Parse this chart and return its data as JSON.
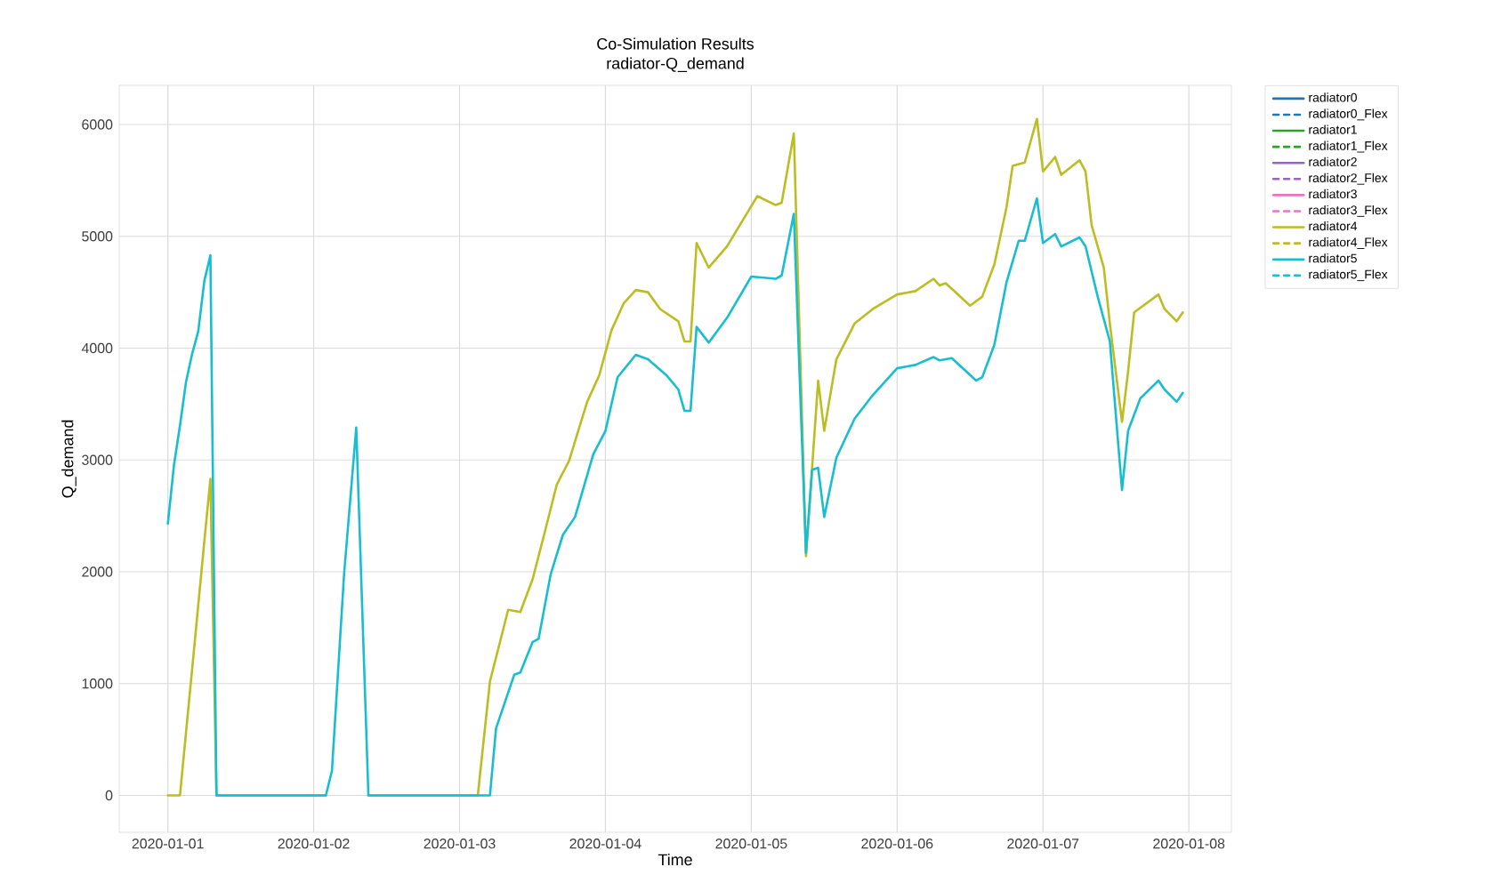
{
  "chart_data": {
    "type": "line",
    "title": "Co-Simulation Results",
    "subtitle": "radiator-Q_demand",
    "xlabel": "Time",
    "ylabel": "Q_demand",
    "xlim": [
      "2019-12-31T16:00",
      "2020-01-08T07:00"
    ],
    "xticks": [
      "2020-01-01",
      "2020-01-02",
      "2020-01-03",
      "2020-01-04",
      "2020-01-05",
      "2020-01-06",
      "2020-01-07",
      "2020-01-08"
    ],
    "ylim": [
      -330,
      6350
    ],
    "yticks": [
      0,
      1000,
      2000,
      3000,
      4000,
      5000,
      6000
    ],
    "grid": true,
    "legend": "right",
    "series": [
      {
        "name": "radiator0",
        "color": "#1f77b4"
      },
      {
        "name": "radiator0_Flex",
        "color": "#1f77b4",
        "line_style": "dashed"
      },
      {
        "name": "radiator1",
        "color": "#2ca02c"
      },
      {
        "name": "radiator1_Flex",
        "color": "#2ca02c",
        "line_style": "dashed"
      },
      {
        "name": "radiator2",
        "color": "#9467bd"
      },
      {
        "name": "radiator2_Flex",
        "color": "#9467bd",
        "line_style": "dashed"
      },
      {
        "name": "radiator3",
        "color": "#e377c2"
      },
      {
        "name": "radiator3_Flex",
        "color": "#e377c2",
        "line_style": "dashed"
      },
      {
        "name": "radiator4",
        "color": "#bcbd22",
        "x": [
          "2020-01-01T00:00",
          "2020-01-01T02:00",
          "2020-01-01T03:00",
          "2020-01-01T04:00",
          "2020-01-01T05:00",
          "2020-01-01T06:00",
          "2020-01-01T07:00",
          "2020-01-01T08:00",
          "2020-01-02T02:00",
          "2020-01-02T03:00",
          "2020-01-02T05:00",
          "2020-01-02T07:00",
          "2020-01-02T09:00",
          "2020-01-03T03:00",
          "2020-01-03T05:00",
          "2020-01-03T08:00",
          "2020-01-03T10:00",
          "2020-01-03T12:00",
          "2020-01-03T14:00",
          "2020-01-03T16:00",
          "2020-01-03T18:00",
          "2020-01-03T21:00",
          "2020-01-03T23:00",
          "2020-01-04T01:00",
          "2020-01-04T03:00",
          "2020-01-04T05:00",
          "2020-01-04T07:00",
          "2020-01-04T09:00",
          "2020-01-04T12:00",
          "2020-01-04T13:00",
          "2020-01-04T14:00",
          "2020-01-04T15:00",
          "2020-01-04T17:00",
          "2020-01-04T20:00",
          "2020-01-04T23:00",
          "2020-01-05T01:00",
          "2020-01-05T04:00",
          "2020-01-05T05:00",
          "2020-01-05T07:00",
          "2020-01-05T09:00",
          "2020-01-05T11:00",
          "2020-01-05T12:00",
          "2020-01-05T14:00",
          "2020-01-05T17:00",
          "2020-01-05T20:00",
          "2020-01-06T00:00",
          "2020-01-06T03:00",
          "2020-01-06T06:00",
          "2020-01-06T07:00",
          "2020-01-06T08:00",
          "2020-01-06T12:00",
          "2020-01-06T14:00",
          "2020-01-06T16:00",
          "2020-01-06T18:00",
          "2020-01-06T19:00",
          "2020-01-06T21:00",
          "2020-01-06T23:00",
          "2020-01-07T00:00",
          "2020-01-07T02:00",
          "2020-01-07T03:00",
          "2020-01-07T06:00",
          "2020-01-07T07:00",
          "2020-01-07T08:00",
          "2020-01-07T10:00",
          "2020-01-07T11:00",
          "2020-01-07T13:00",
          "2020-01-07T14:00",
          "2020-01-07T15:00",
          "2020-01-07T19:00",
          "2020-01-07T20:00",
          "2020-01-07T22:00",
          "2020-01-07T23:00"
        ],
        "values": [
          0,
          0,
          570,
          1130,
          1700,
          2270,
          2830,
          0,
          0,
          null,
          null,
          null,
          0,
          0,
          1020,
          1660,
          1640,
          1930,
          2350,
          2780,
          2990,
          3520,
          3760,
          4160,
          4400,
          4520,
          4500,
          4350,
          4240,
          4060,
          4060,
          4940,
          4720,
          4910,
          5180,
          5360,
          5280,
          5300,
          5920,
          2140,
          3710,
          3260,
          3900,
          4220,
          4350,
          4480,
          4510,
          4620,
          4560,
          4580,
          4380,
          4460,
          4750,
          5260,
          5630,
          5660,
          6050,
          5580,
          5710,
          5550,
          5680,
          5580,
          5100,
          4720,
          4220,
          3340,
          3790,
          4320,
          4480,
          4350,
          4240,
          4320
        ]
      },
      {
        "name": "radiator4_Flex",
        "color": "#bcbd22",
        "line_style": "dashed"
      },
      {
        "name": "radiator5",
        "color": "#17becf",
        "x": [
          "2020-01-01T00:00",
          "2020-01-01T01:00",
          "2020-01-01T02:00",
          "2020-01-01T03:00",
          "2020-01-01T04:00",
          "2020-01-01T05:00",
          "2020-01-01T06:00",
          "2020-01-01T07:00",
          "2020-01-01T08:00",
          "2020-01-02T02:00",
          "2020-01-02T03:00",
          "2020-01-02T05:00",
          "2020-01-02T07:00",
          "2020-01-02T09:00",
          "2020-01-03T05:00",
          "2020-01-03T06:00",
          "2020-01-03T09:00",
          "2020-01-03T10:00",
          "2020-01-03T12:00",
          "2020-01-03T13:00",
          "2020-01-03T15:00",
          "2020-01-03T17:00",
          "2020-01-03T19:00",
          "2020-01-03T22:00",
          "2020-01-04T00:00",
          "2020-01-04T02:00",
          "2020-01-04T05:00",
          "2020-01-04T07:00",
          "2020-01-04T10:00",
          "2020-01-04T12:00",
          "2020-01-04T13:00",
          "2020-01-04T14:00",
          "2020-01-04T15:00",
          "2020-01-04T17:00",
          "2020-01-04T20:00",
          "2020-01-05T00:00",
          "2020-01-05T04:00",
          "2020-01-05T05:00",
          "2020-01-05T07:00",
          "2020-01-05T09:00",
          "2020-01-05T10:00",
          "2020-01-05T11:00",
          "2020-01-05T12:00",
          "2020-01-05T14:00",
          "2020-01-05T17:00",
          "2020-01-05T20:00",
          "2020-01-06T00:00",
          "2020-01-06T03:00",
          "2020-01-06T06:00",
          "2020-01-06T07:00",
          "2020-01-06T09:00",
          "2020-01-06T13:00",
          "2020-01-06T14:00",
          "2020-01-06T16:00",
          "2020-01-06T18:00",
          "2020-01-06T20:00",
          "2020-01-06T21:00",
          "2020-01-06T23:00",
          "2020-01-07T00:00",
          "2020-01-07T02:00",
          "2020-01-07T03:00",
          "2020-01-07T06:00",
          "2020-01-07T07:00",
          "2020-01-07T09:00",
          "2020-01-07T11:00",
          "2020-01-07T13:00",
          "2020-01-07T14:00",
          "2020-01-07T16:00",
          "2020-01-07T19:00",
          "2020-01-07T20:00",
          "2020-01-07T22:00",
          "2020-01-07T23:00"
        ],
        "values": [
          2430,
          2950,
          3310,
          3700,
          3950,
          4150,
          4600,
          4830,
          0,
          0,
          220,
          1980,
          3290,
          0,
          0,
          600,
          1080,
          1100,
          1370,
          1400,
          1980,
          2330,
          2490,
          3050,
          3260,
          3740,
          3940,
          3900,
          3760,
          3630,
          3440,
          3440,
          4190,
          4050,
          4270,
          4640,
          4620,
          4650,
          5200,
          2170,
          2910,
          2930,
          2490,
          3020,
          3370,
          3580,
          3820,
          3850,
          3920,
          3890,
          3910,
          3710,
          3740,
          4030,
          4590,
          4960,
          4960,
          5340,
          4940,
          5020,
          4910,
          4990,
          4910,
          4460,
          4060,
          2730,
          3260,
          3550,
          3710,
          3630,
          3520,
          3600
        ]
      },
      {
        "name": "radiator5_Flex",
        "color": "#17becf",
        "line_style": "dashed"
      }
    ]
  }
}
